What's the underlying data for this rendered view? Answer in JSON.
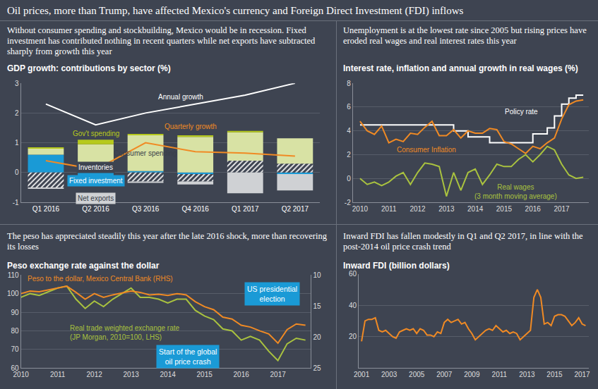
{
  "title": "Oil prices, more than Trump, have affected Mexico's currency and Foreign Direct Investment (FDI) inflows",
  "chart_data": [
    {
      "type": "bar",
      "subtitle": "Without consumer spending and stockbuilding, Mexico would be in recession. Fixed investment has contributed nothing in recent quarters while net exports have subtracted sharply from growth this year",
      "title": "GDP growth: contributions by sector (%)",
      "stacked": true,
      "categories": [
        "Q1 2016",
        "Q2 2016",
        "Q3 2016",
        "Q4 2016",
        "Q1 2017",
        "Q2 2017"
      ],
      "series": [
        {
          "name": "Fixed investment",
          "type": "bar",
          "color": "#1a9ad6",
          "values": [
            0.6,
            -0.1,
            0.05,
            -0.05,
            0.0,
            -0.05
          ]
        },
        {
          "name": "Inventories",
          "type": "bar",
          "color": "#f2f2f2",
          "marker": "hatched",
          "values": [
            -0.5,
            0.35,
            -0.3,
            -0.25,
            0.4,
            0.3
          ]
        },
        {
          "name": "Consumer spending",
          "type": "bar",
          "color": "#d8e2a4",
          "values": [
            0.2,
            0.6,
            1.2,
            1.2,
            0.95,
            0.85
          ]
        },
        {
          "name": "Gov't spending",
          "type": "bar",
          "color": "#b6c91c",
          "values": [
            0.05,
            0.15,
            0.05,
            0.05,
            0.05,
            0.0
          ]
        },
        {
          "name": "Net exports",
          "type": "bar",
          "color": "#cfd1d4",
          "values": [
            -0.05,
            -0.35,
            -0.05,
            -0.1,
            -0.7,
            -0.55
          ]
        },
        {
          "name": "Annual growth",
          "type": "line",
          "color": "#ffffff",
          "values": [
            2.3,
            1.6,
            2.0,
            2.3,
            2.6,
            3.0
          ]
        },
        {
          "name": "Quarterly growth",
          "type": "line",
          "color": "#f08a24",
          "values": [
            0.4,
            0.1,
            1.0,
            0.7,
            0.65,
            0.55
          ]
        }
      ],
      "ylim": [
        -1,
        3
      ],
      "yticks": [
        -1,
        0,
        1,
        2,
        3
      ],
      "grid": true
    },
    {
      "type": "line",
      "subtitle": "Unemployment is at the lowest rate since 2005 but rising prices have eroded real wages and real interest rates this year",
      "title": "Interest rate, inflation and annual growth in real wages (%)",
      "x": [
        2010,
        2010.25,
        2010.5,
        2010.75,
        2011,
        2011.25,
        2011.5,
        2011.75,
        2012,
        2012.25,
        2012.5,
        2012.75,
        2013,
        2013.25,
        2013.5,
        2013.75,
        2014,
        2014.25,
        2014.5,
        2014.75,
        2015,
        2015.25,
        2015.5,
        2015.75,
        2016,
        2016.25,
        2016.5,
        2016.75,
        2017,
        2017.25,
        2017.5,
        2017.75
      ],
      "series": [
        {
          "name": "Policy rate",
          "color": "#ffffff",
          "line_style": "step",
          "values": [
            4.5,
            4.5,
            4.5,
            4.5,
            4.5,
            4.5,
            4.5,
            4.5,
            4.5,
            4.5,
            4.5,
            4.5,
            4.5,
            4.0,
            4.0,
            3.5,
            3.5,
            3.5,
            3.0,
            3.0,
            3.0,
            3.0,
            3.0,
            3.0,
            3.75,
            3.75,
            4.25,
            5.25,
            6.25,
            6.75,
            7.0,
            7.0
          ]
        },
        {
          "name": "Consumer Inflation",
          "color": "#f08a24",
          "values": [
            4.8,
            4.0,
            3.7,
            4.4,
            3.0,
            3.3,
            3.1,
            3.8,
            3.7,
            4.3,
            4.8,
            3.6,
            3.6,
            4.1,
            3.4,
            4.0,
            3.8,
            3.8,
            4.2,
            4.1,
            3.1,
            2.9,
            2.5,
            2.1,
            2.7,
            2.5,
            3.0,
            3.4,
            5.0,
            6.2,
            6.5,
            6.6
          ]
        },
        {
          "name": "Real wages (3 month moving average)",
          "color": "#a9c23f",
          "values": [
            0.0,
            -0.5,
            -0.3,
            -0.6,
            -0.3,
            0.2,
            0.5,
            -0.5,
            0.5,
            1.3,
            1.2,
            1.0,
            -1.5,
            0.5,
            -1.0,
            0.5,
            0.8,
            -0.5,
            0.3,
            1.2,
            1.0,
            1.0,
            1.6,
            2.0,
            1.4,
            2.0,
            2.7,
            2.4,
            1.2,
            0.3,
            0.0,
            0.1
          ]
        }
      ],
      "xlim": [
        2009.75,
        2017.95
      ],
      "xticks": [
        2010,
        2011,
        2012,
        2013,
        2014,
        2015,
        2016,
        2017
      ],
      "ylim": [
        -2,
        8
      ],
      "yticks": [
        -2,
        0,
        2,
        4,
        6,
        8
      ],
      "grid": true
    },
    {
      "type": "line",
      "subtitle": "The peso has appreciated steadily this year after the late 2016 shock, more than recovering its losses",
      "title": "Peso exchange rate against the dollar",
      "x": [
        2010,
        2010.25,
        2010.5,
        2010.75,
        2011,
        2011.25,
        2011.5,
        2011.75,
        2012,
        2012.25,
        2012.5,
        2012.75,
        2013,
        2013.25,
        2013.5,
        2013.75,
        2014,
        2014.25,
        2014.5,
        2014.75,
        2015,
        2015.25,
        2015.5,
        2015.75,
        2016,
        2016.25,
        2016.5,
        2016.75,
        2017,
        2017.25,
        2017.5,
        2017.75
      ],
      "series": [
        {
          "name": "Peso to the dollar, Mexico Central Bank (RHS)",
          "color": "#f08a24",
          "axis": "y2",
          "values": [
            13.0,
            12.6,
            12.7,
            12.4,
            12.1,
            11.8,
            12.8,
            13.9,
            13.0,
            13.6,
            13.2,
            12.9,
            12.6,
            12.8,
            13.2,
            13.1,
            13.3,
            13.0,
            13.2,
            14.3,
            15.1,
            15.6,
            16.8,
            17.1,
            18.1,
            18.4,
            19.0,
            19.5,
            21.0,
            18.8,
            17.9,
            18.1
          ]
        },
        {
          "name": "Real trade weighted exchange rate (JP Morgan, 2010=100, LHS)",
          "color": "#a9c23f",
          "values": [
            98,
            100,
            99,
            101,
            103,
            104,
            97,
            92,
            96,
            93,
            97,
            100,
            103,
            98,
            98,
            97,
            95,
            97,
            97,
            91,
            88,
            86,
            81,
            80,
            75,
            77,
            75,
            69,
            64,
            73,
            76,
            75
          ]
        }
      ],
      "annotations": [
        {
          "text": "US presidential election"
        },
        {
          "text": "Start of the global oil price crash"
        }
      ],
      "xlim": [
        2010,
        2017.9
      ],
      "xticks": [
        2010,
        2011,
        2012,
        2013,
        2014,
        2015,
        2016,
        2017
      ],
      "ylim": [
        60,
        110
      ],
      "yticks": [
        60,
        70,
        80,
        90,
        100,
        110
      ],
      "y2lim": [
        25,
        10
      ],
      "y2ticks": [
        10,
        15,
        20,
        25
      ],
      "grid": true
    },
    {
      "type": "line",
      "subtitle": "Inward FDI has fallen modestly in Q1 and Q2 2017, in line with the post-2014 oil price crash trend",
      "title": "Inward FDI (billion dollars)",
      "x": [
        2001,
        2001.25,
        2001.5,
        2001.75,
        2002,
        2002.25,
        2002.5,
        2002.75,
        2003,
        2003.25,
        2003.5,
        2003.75,
        2004,
        2004.25,
        2004.5,
        2004.75,
        2005,
        2005.25,
        2005.5,
        2005.75,
        2006,
        2006.25,
        2006.5,
        2006.75,
        2007,
        2007.25,
        2007.5,
        2007.75,
        2008,
        2008.25,
        2008.5,
        2008.75,
        2009,
        2009.25,
        2009.5,
        2009.75,
        2010,
        2010.25,
        2010.5,
        2010.75,
        2011,
        2011.25,
        2011.5,
        2011.75,
        2012,
        2012.25,
        2012.5,
        2012.75,
        2013,
        2013.25,
        2013.5,
        2013.75,
        2014,
        2014.25,
        2014.5,
        2014.75,
        2015,
        2015.25,
        2015.5,
        2015.75,
        2016,
        2016.25,
        2016.5,
        2016.75,
        2017,
        2017.25
      ],
      "values": [
        17,
        30,
        31,
        31,
        32,
        24,
        23,
        24,
        22,
        20,
        19,
        23,
        24,
        25,
        24,
        25,
        22,
        25,
        24,
        21,
        21,
        20,
        23,
        22,
        29,
        31,
        29,
        30,
        31,
        28,
        29,
        25,
        22,
        18,
        20,
        22,
        24,
        25,
        24,
        27,
        25,
        23,
        24,
        22,
        23,
        22,
        18,
        20,
        22,
        24,
        45,
        50,
        45,
        28,
        29,
        27,
        33,
        34,
        34,
        33,
        30,
        27,
        29,
        32,
        28,
        27
      ],
      "color": "#f08a24",
      "xlim": [
        2000.8,
        2017.5
      ],
      "xticks": [
        2001,
        2003,
        2005,
        2007,
        2009,
        2011,
        2013,
        2015,
        2017
      ],
      "ylim": [
        0,
        60
      ],
      "yticks": [
        20,
        40,
        60
      ],
      "grid": true
    }
  ]
}
